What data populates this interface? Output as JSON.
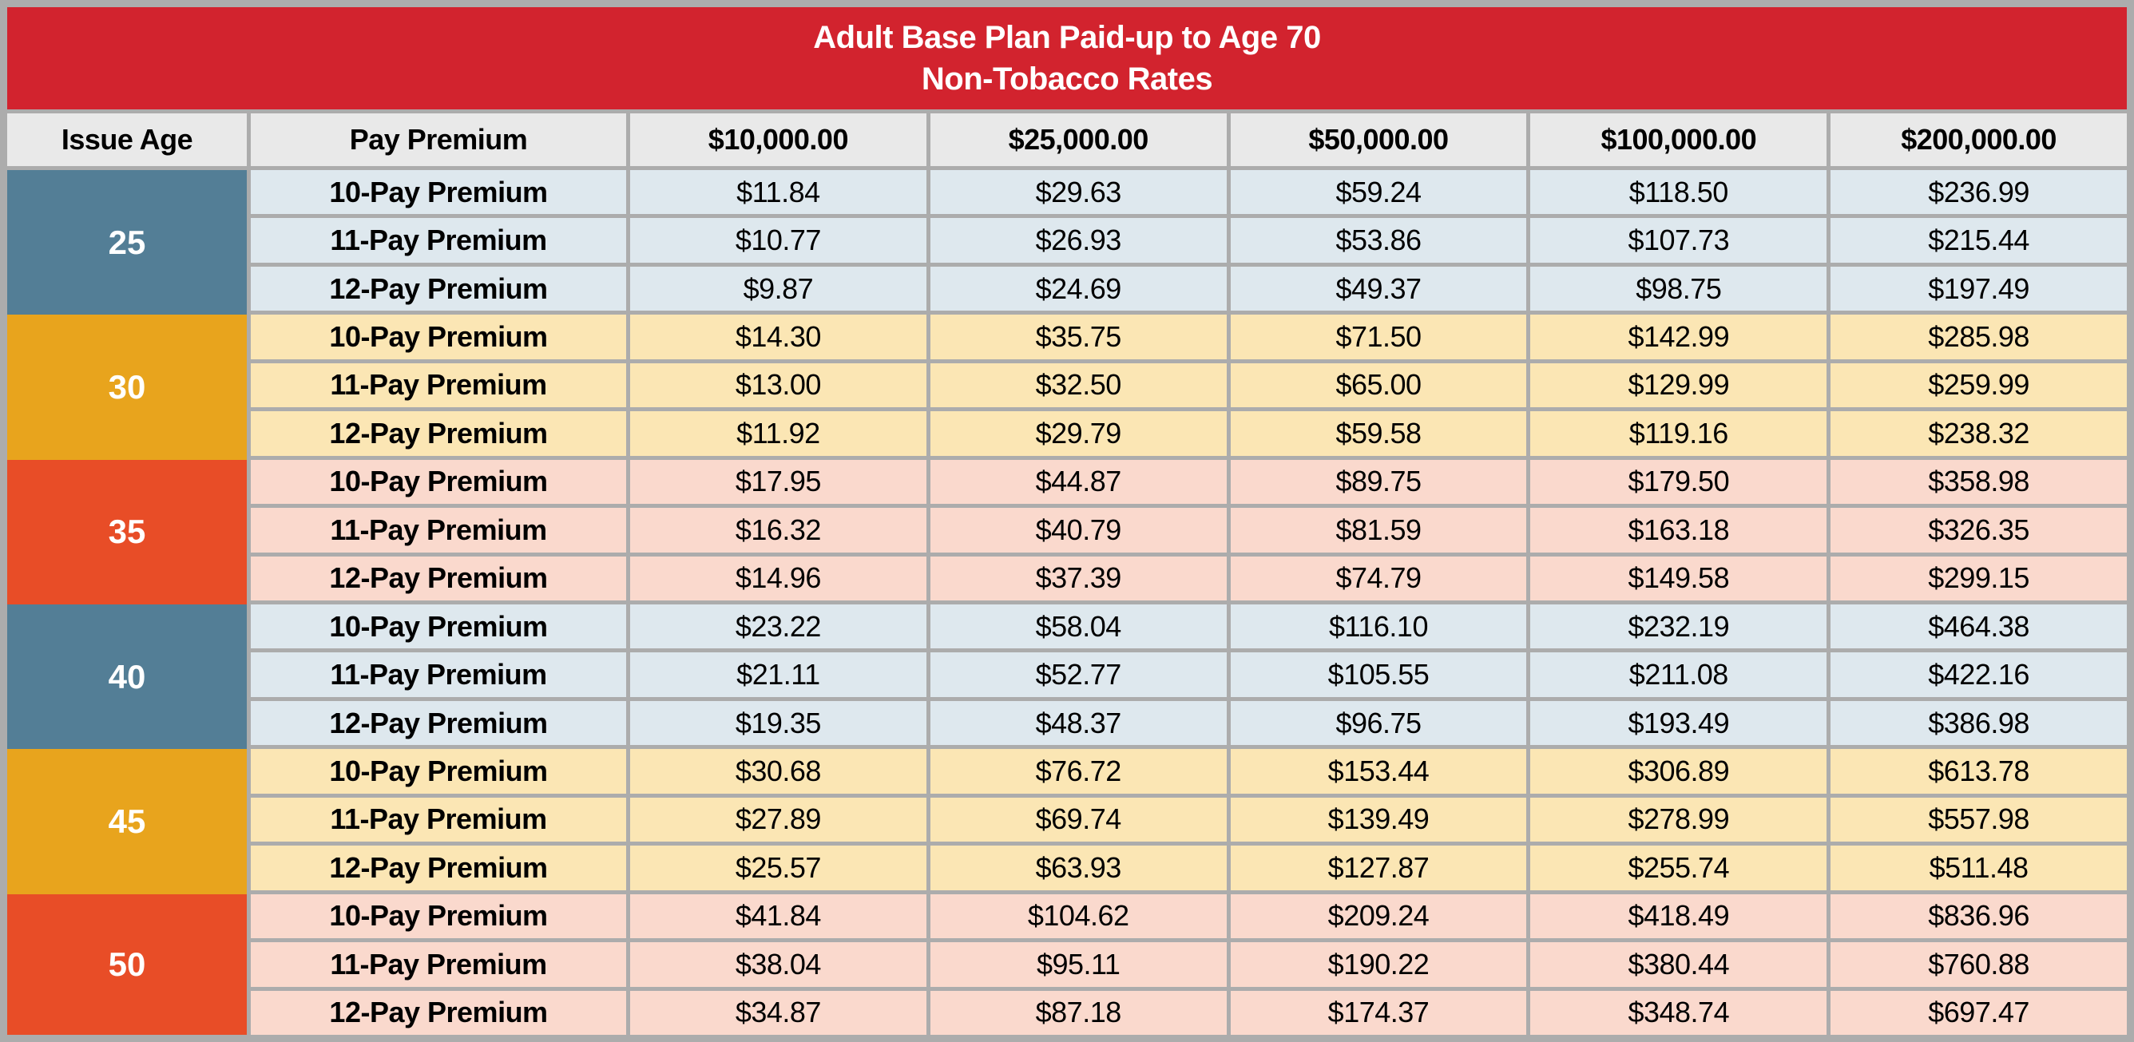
{
  "banner": {
    "title_line1": "Adult Base Plan Paid-up to Age 70",
    "title_line2": "Non-Tobacco Rates"
  },
  "columns": [
    "Issue Age",
    "Pay Premium",
    "$10,000.00",
    "$25,000.00",
    "$50,000.00",
    "$100,000.00",
    "$200,000.00"
  ],
  "colors": {
    "banner_red": "#D2232E",
    "header_gray": "#E9E9E9",
    "grid_gray": "#ACACAC",
    "text_black": "#000000",
    "text_white": "#FFFFFF",
    "themes": {
      "blue": {
        "age_bg": "#537E96",
        "row_bg": "#DEE8EE"
      },
      "amber": {
        "age_bg": "#E8A41D",
        "row_bg": "#FBE6B4"
      },
      "red": {
        "age_bg": "#E84D27",
        "row_bg": "#FAD9CD"
      }
    }
  },
  "age_groups": [
    {
      "age": "25",
      "theme": "blue",
      "rows": [
        {
          "label": "10-Pay Premium",
          "values": [
            "$11.84",
            "$29.63",
            "$59.24",
            "$118.50",
            "$236.99"
          ]
        },
        {
          "label": "11-Pay Premium",
          "values": [
            "$10.77",
            "$26.93",
            "$53.86",
            "$107.73",
            "$215.44"
          ]
        },
        {
          "label": "12-Pay Premium",
          "values": [
            "$9.87",
            "$24.69",
            "$49.37",
            "$98.75",
            "$197.49"
          ]
        }
      ]
    },
    {
      "age": "30",
      "theme": "amber",
      "rows": [
        {
          "label": "10-Pay Premium",
          "values": [
            "$14.30",
            "$35.75",
            "$71.50",
            "$142.99",
            "$285.98"
          ]
        },
        {
          "label": "11-Pay Premium",
          "values": [
            "$13.00",
            "$32.50",
            "$65.00",
            "$129.99",
            "$259.99"
          ]
        },
        {
          "label": "12-Pay Premium",
          "values": [
            "$11.92",
            "$29.79",
            "$59.58",
            "$119.16",
            "$238.32"
          ]
        }
      ]
    },
    {
      "age": "35",
      "theme": "red",
      "rows": [
        {
          "label": "10-Pay Premium",
          "values": [
            "$17.95",
            "$44.87",
            "$89.75",
            "$179.50",
            "$358.98"
          ]
        },
        {
          "label": "11-Pay Premium",
          "values": [
            "$16.32",
            "$40.79",
            "$81.59",
            "$163.18",
            "$326.35"
          ]
        },
        {
          "label": "12-Pay Premium",
          "values": [
            "$14.96",
            "$37.39",
            "$74.79",
            "$149.58",
            "$299.15"
          ]
        }
      ]
    },
    {
      "age": "40",
      "theme": "blue",
      "rows": [
        {
          "label": "10-Pay Premium",
          "values": [
            "$23.22",
            "$58.04",
            "$116.10",
            "$232.19",
            "$464.38"
          ]
        },
        {
          "label": "11-Pay Premium",
          "values": [
            "$21.11",
            "$52.77",
            "$105.55",
            "$211.08",
            "$422.16"
          ]
        },
        {
          "label": "12-Pay Premium",
          "values": [
            "$19.35",
            "$48.37",
            "$96.75",
            "$193.49",
            "$386.98"
          ]
        }
      ]
    },
    {
      "age": "45",
      "theme": "amber",
      "rows": [
        {
          "label": "10-Pay Premium",
          "values": [
            "$30.68",
            "$76.72",
            "$153.44",
            "$306.89",
            "$613.78"
          ]
        },
        {
          "label": "11-Pay Premium",
          "values": [
            "$27.89",
            "$69.74",
            "$139.49",
            "$278.99",
            "$557.98"
          ]
        },
        {
          "label": "12-Pay Premium",
          "values": [
            "$25.57",
            "$63.93",
            "$127.87",
            "$255.74",
            "$511.48"
          ]
        }
      ]
    },
    {
      "age": "50",
      "theme": "red",
      "rows": [
        {
          "label": "10-Pay Premium",
          "values": [
            "$41.84",
            "$104.62",
            "$209.24",
            "$418.49",
            "$836.96"
          ]
        },
        {
          "label": "11-Pay Premium",
          "values": [
            "$38.04",
            "$95.11",
            "$190.22",
            "$380.44",
            "$760.88"
          ]
        },
        {
          "label": "12-Pay Premium",
          "values": [
            "$34.87",
            "$87.18",
            "$174.37",
            "$348.74",
            "$697.47"
          ]
        }
      ]
    }
  ]
}
